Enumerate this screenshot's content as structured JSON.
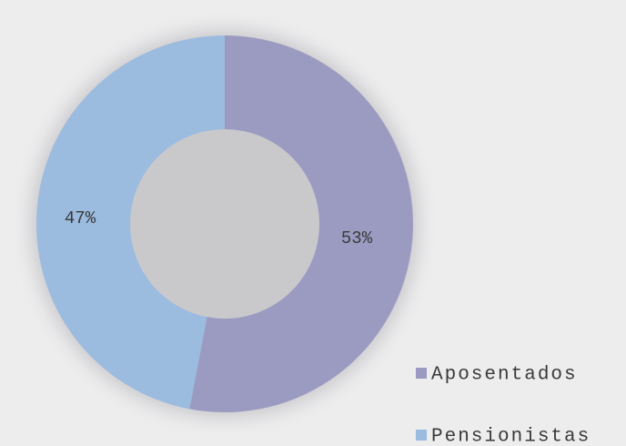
{
  "chart_data": {
    "type": "donut",
    "categories": [
      "Aposentados",
      "Pensionistas"
    ],
    "values": [
      53,
      47
    ],
    "value_labels": [
      "53%",
      "47%"
    ],
    "colors": [
      "#9b9bc2",
      "#9bbbdf"
    ],
    "legend": "bottom-right"
  }
}
